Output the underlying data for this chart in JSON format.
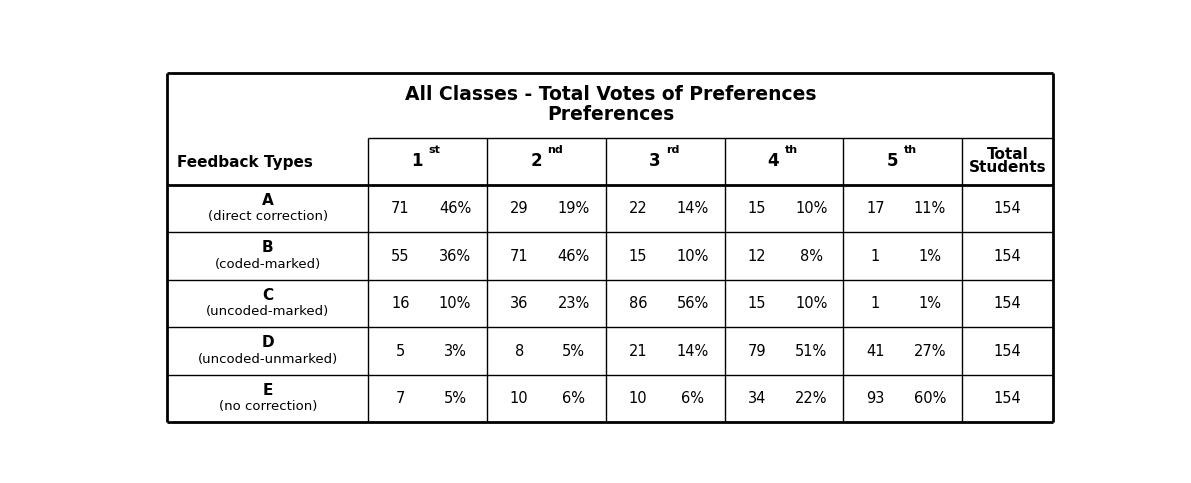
{
  "title_line1": "All Classes - Total Votes of Preferences",
  "title_line2": "Preferences",
  "col_header_left": "Feedback Types",
  "col_headers": [
    "1",
    "2",
    "3",
    "4",
    "5"
  ],
  "col_superscripts": [
    "st",
    "nd",
    "rd",
    "th",
    "th"
  ],
  "col_header_right": "Total\nStudents",
  "rows": [
    {
      "label_bold": "A",
      "label_sub": "(direct correction)",
      "data": [
        [
          71,
          "46%"
        ],
        [
          29,
          "19%"
        ],
        [
          22,
          "14%"
        ],
        [
          15,
          "10%"
        ],
        [
          17,
          "11%"
        ]
      ],
      "total": 154
    },
    {
      "label_bold": "B",
      "label_sub": "(coded-marked)",
      "data": [
        [
          55,
          "36%"
        ],
        [
          71,
          "46%"
        ],
        [
          15,
          "10%"
        ],
        [
          12,
          "8%"
        ],
        [
          1,
          "1%"
        ]
      ],
      "total": 154
    },
    {
      "label_bold": "C",
      "label_sub": "(uncoded-marked)",
      "data": [
        [
          16,
          "10%"
        ],
        [
          36,
          "23%"
        ],
        [
          86,
          "56%"
        ],
        [
          15,
          "10%"
        ],
        [
          1,
          "1%"
        ]
      ],
      "total": 154
    },
    {
      "label_bold": "D",
      "label_sub": "(uncoded-unmarked)",
      "data": [
        [
          5,
          "3%"
        ],
        [
          8,
          "5%"
        ],
        [
          21,
          "14%"
        ],
        [
          79,
          "51%"
        ],
        [
          41,
          "27%"
        ]
      ],
      "total": 154
    },
    {
      "label_bold": "E",
      "label_sub": "(no correction)",
      "data": [
        [
          7,
          "5%"
        ],
        [
          10,
          "6%"
        ],
        [
          10,
          "6%"
        ],
        [
          34,
          "22%"
        ],
        [
          93,
          "60%"
        ]
      ],
      "total": 154
    }
  ],
  "bg_color": "#ffffff",
  "text_color": "#000000",
  "line_color": "#000000",
  "lw_thick": 2.0,
  "lw_thin": 1.0
}
